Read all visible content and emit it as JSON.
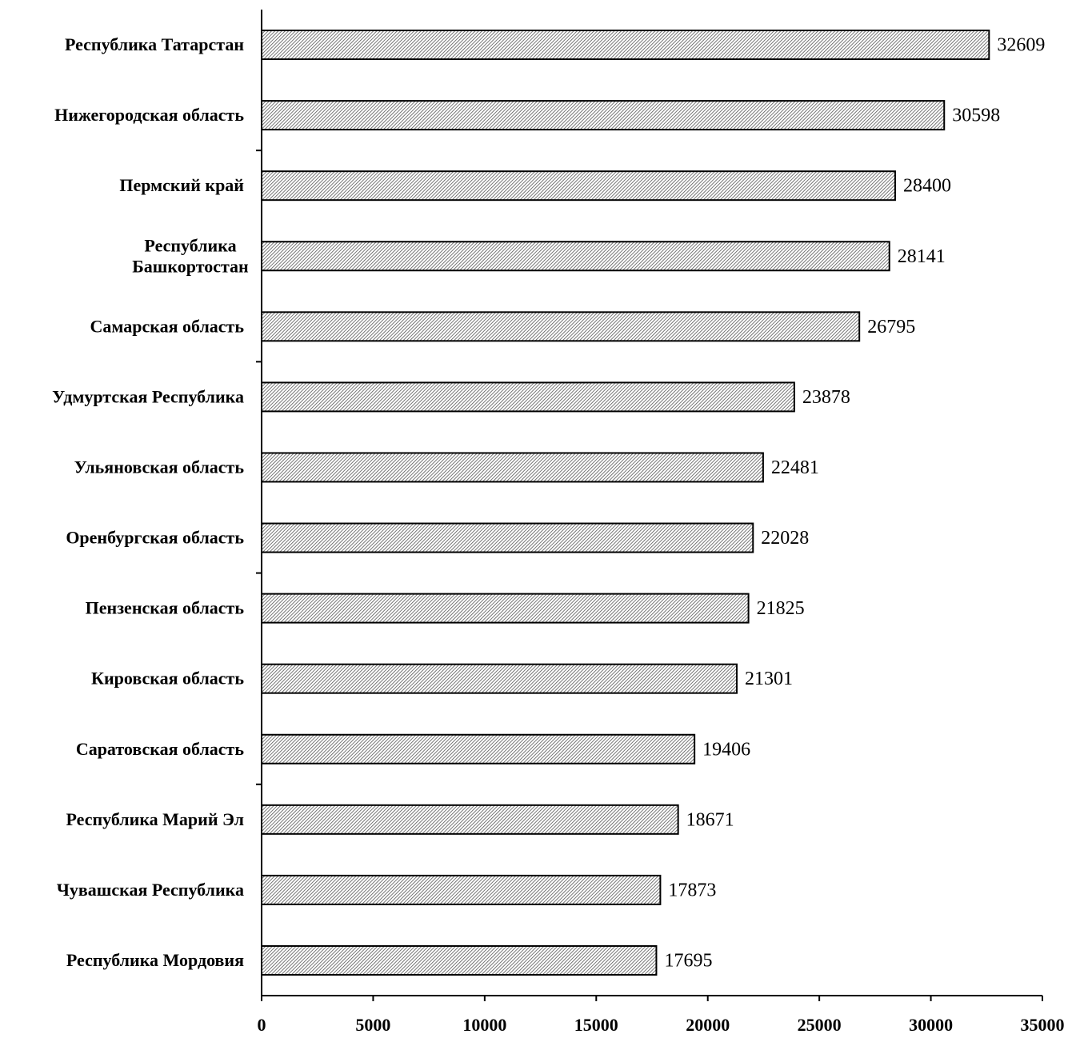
{
  "chart_data": {
    "type": "barh",
    "categories": [
      "Республика Татарстан",
      "Нижегородская область",
      "Пермский край",
      "Республика\nБашкортостан",
      "Самарская область",
      "Удмуртская Республика",
      "Ульяновская область",
      "Оренбургская область",
      "Пензенская область",
      "Кировская область",
      "Саратовская область",
      "Республика Марий Эл",
      "Чувашская Республика",
      "Республика Мордовия"
    ],
    "values": [
      32609,
      30598,
      28400,
      28141,
      26795,
      23878,
      22481,
      22028,
      21825,
      21301,
      19406,
      18671,
      17873,
      17695
    ],
    "color": "#888888",
    "xlim": [
      0,
      35000
    ],
    "xticks": [
      0,
      5000,
      10000,
      15000,
      20000,
      25000,
      30000,
      35000
    ],
    "grid": false
  }
}
